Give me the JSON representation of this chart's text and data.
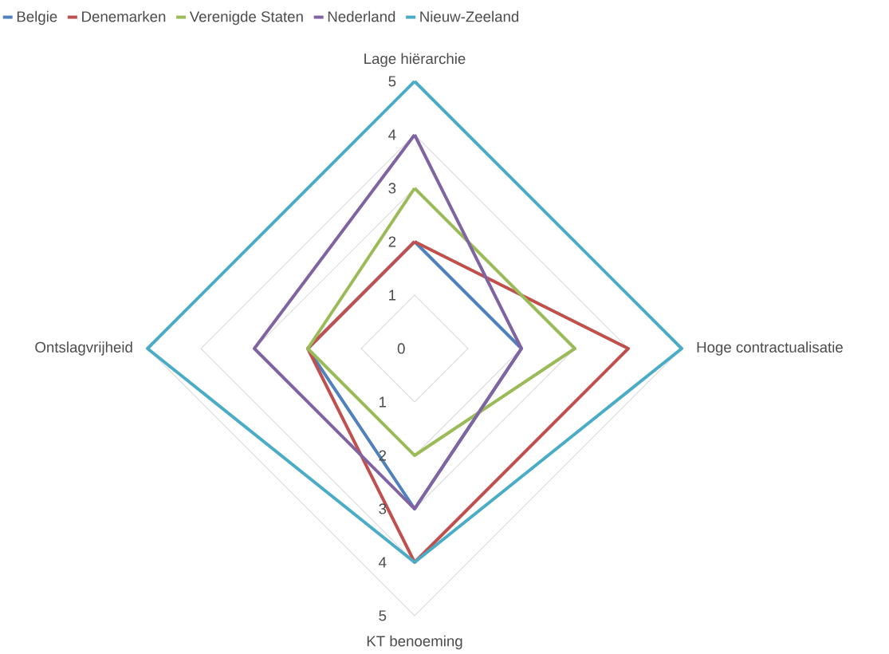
{
  "chart_data": {
    "type": "radar",
    "categories": [
      "Lage hiërarchie",
      "Hoge contractualisatie",
      "KT benoeming",
      "Ontslagvrijheid"
    ],
    "series": [
      {
        "name": "Belgie",
        "color": "#4f81bd",
        "values": [
          2,
          2,
          3,
          2
        ]
      },
      {
        "name": "Denemarken",
        "color": "#c0504d",
        "values": [
          2,
          4,
          4,
          2
        ]
      },
      {
        "name": "Verenigde Staten",
        "color": "#9bbb59",
        "values": [
          3,
          3,
          2,
          2
        ]
      },
      {
        "name": "Nederland",
        "color": "#8064a2",
        "values": [
          4,
          2,
          3,
          3
        ]
      },
      {
        "name": "Nieuw-Zeeland",
        "color": "#4bacc6",
        "values": [
          5,
          5,
          4,
          5
        ]
      }
    ],
    "ylim": [
      0,
      5
    ],
    "yticks": [
      0,
      1,
      2,
      3,
      4,
      5
    ],
    "grid": true,
    "legend": "top left",
    "annotations": [
      "1",
      "2",
      "3",
      "4",
      "5"
    ]
  }
}
